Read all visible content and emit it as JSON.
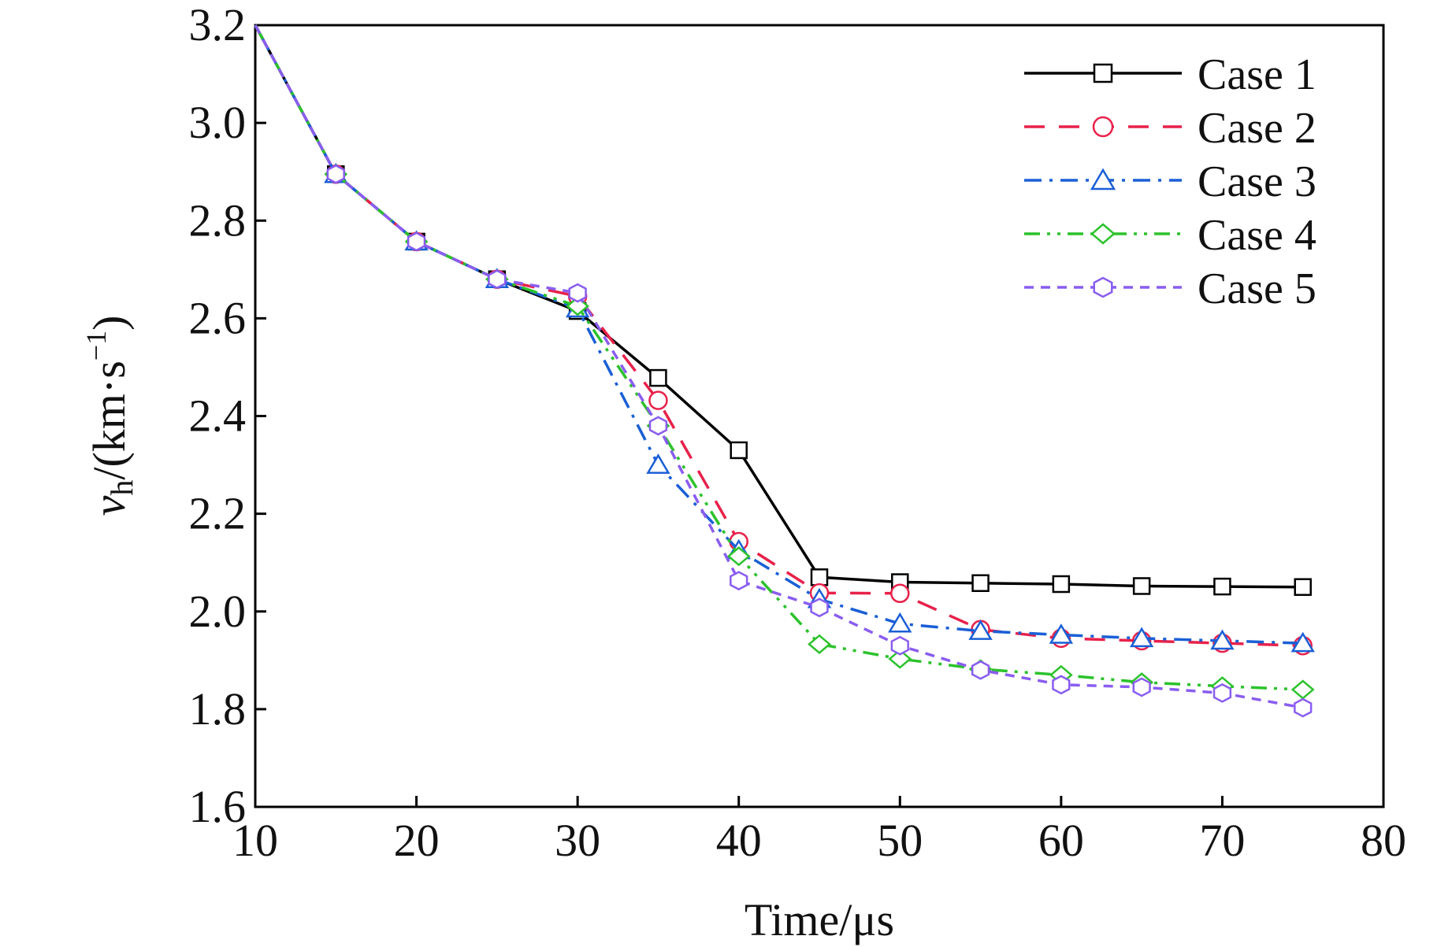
{
  "chart_data": {
    "type": "line",
    "title": "",
    "xlabel": "Time/μs",
    "ylabel_main": "v",
    "ylabel_sub": "h",
    "ylabel_rest": "/(km·s",
    "ylabel_sup": "−1",
    "ylabel_close": ")",
    "xlim": [
      10,
      80
    ],
    "ylim": [
      1.6,
      3.2
    ],
    "xticks": [
      10,
      20,
      30,
      40,
      50,
      60,
      70,
      80
    ],
    "xtick_labels": [
      "10",
      "20",
      "30",
      "40",
      "50",
      "60",
      "70",
      "80"
    ],
    "yticks": [
      1.6,
      1.8,
      2.0,
      2.2,
      2.4,
      2.6,
      2.8,
      3.0,
      3.2
    ],
    "ytick_labels": [
      "1.6",
      "1.8",
      "2.0",
      "2.2",
      "2.4",
      "2.6",
      "2.8",
      "3.0",
      "3.2"
    ],
    "grid": false,
    "legend_position": "top-right",
    "x": [
      10,
      15,
      20,
      25,
      30,
      35,
      40,
      45,
      50,
      55,
      60,
      65,
      70,
      75
    ],
    "series": [
      {
        "name": "Case 1",
        "color": "#000000",
        "dash": "solid",
        "marker": "square",
        "values": [
          3.2,
          2.895,
          2.757,
          2.68,
          2.615,
          2.478,
          2.33,
          2.07,
          2.06,
          2.058,
          2.056,
          2.052,
          2.051,
          2.05
        ]
      },
      {
        "name": "Case 2",
        "color": "#e8214a",
        "dash": "dashed",
        "marker": "circle",
        "values": [
          3.2,
          2.895,
          2.757,
          2.68,
          2.645,
          2.432,
          2.143,
          2.038,
          2.037,
          1.963,
          1.945,
          1.94,
          1.935,
          1.93
        ]
      },
      {
        "name": "Case 3",
        "color": "#1a5fd6",
        "dash": "dashdot",
        "marker": "triangle",
        "values": [
          3.2,
          2.895,
          2.757,
          2.68,
          2.62,
          2.3,
          2.125,
          2.025,
          1.975,
          1.96,
          1.952,
          1.945,
          1.94,
          1.935
        ]
      },
      {
        "name": "Case 4",
        "color": "#2cc22c",
        "dash": "dashdotdot",
        "marker": "diamond",
        "values": [
          3.2,
          2.895,
          2.757,
          2.68,
          2.625,
          2.38,
          2.113,
          1.933,
          1.903,
          1.882,
          1.87,
          1.855,
          1.847,
          1.84
        ]
      },
      {
        "name": "Case 5",
        "color": "#8a5df0",
        "dash": "shortdash",
        "marker": "hexagon",
        "values": [
          3.2,
          2.895,
          2.757,
          2.68,
          2.652,
          2.38,
          2.063,
          2.008,
          1.93,
          1.88,
          1.85,
          1.845,
          1.833,
          1.803
        ]
      }
    ]
  }
}
